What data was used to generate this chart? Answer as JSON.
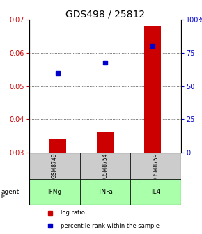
{
  "title": "GDS498 / 25812",
  "samples": [
    "GSM8749",
    "GSM8754",
    "GSM8759"
  ],
  "agents": [
    "IFNg",
    "TNFa",
    "IL4"
  ],
  "bar_values": [
    0.034,
    0.036,
    0.068
  ],
  "bar_baseline": 0.03,
  "percentile_values": [
    0.054,
    0.057,
    0.062
  ],
  "ylim_left": [
    0.03,
    0.07
  ],
  "ylim_right": [
    0,
    100
  ],
  "yticks_left": [
    0.03,
    0.04,
    0.05,
    0.06,
    0.07
  ],
  "yticks_right": [
    0,
    25,
    50,
    75,
    100
  ],
  "ytick_right_labels": [
    "0",
    "25",
    "50",
    "75",
    "100%"
  ],
  "bar_color": "#cc0000",
  "dot_color": "#0000cc",
  "grid_color": "#000000",
  "sample_box_color": "#cccccc",
  "agent_box_color": "#aaffaa",
  "title_fontsize": 10,
  "tick_fontsize": 7,
  "bar_width": 0.35,
  "x_positions": [
    1,
    2,
    3
  ],
  "xlim": [
    0.4,
    3.6
  ]
}
